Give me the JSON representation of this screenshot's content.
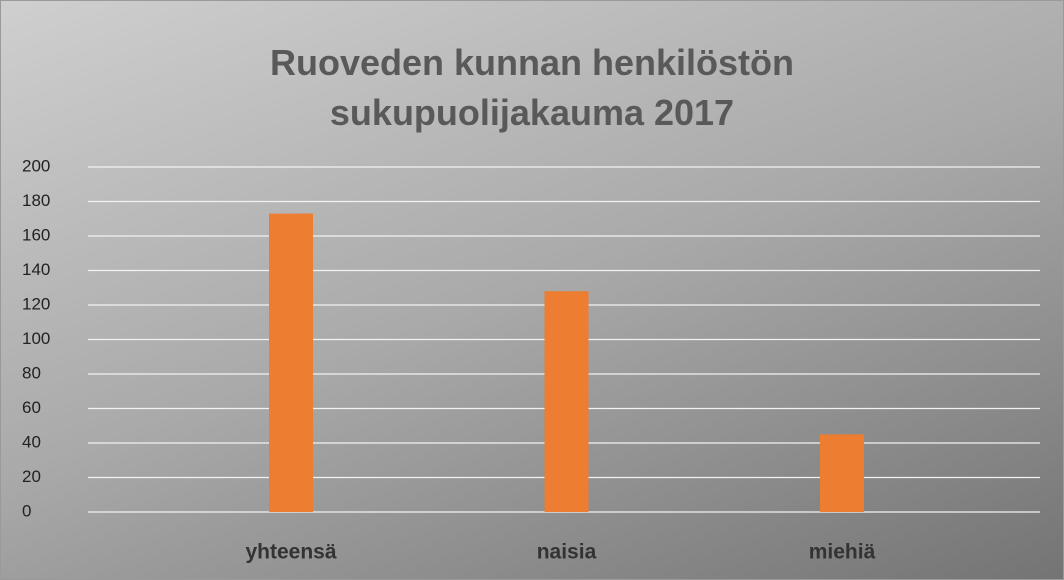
{
  "chart_data": {
    "type": "bar",
    "title": "Ruoveden kunnan henkilöstön sukupuolijakauma 2017",
    "categories": [
      "yhteensä",
      "naisia",
      "miehiä"
    ],
    "values": [
      173,
      128,
      45
    ],
    "color": "#ed7d31",
    "ylim": [
      0,
      200
    ],
    "yticks": [
      0,
      20,
      40,
      60,
      80,
      100,
      120,
      140,
      160,
      180,
      200
    ],
    "grid": true
  }
}
